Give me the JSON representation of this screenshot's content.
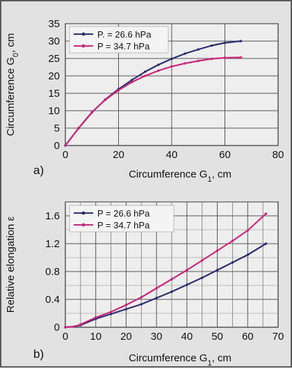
{
  "chart_data": [
    {
      "type": "line",
      "panel_label": "a)",
      "xlabel_main": "Circumference G",
      "xlabel_sub": "1",
      "xlabel_suffix": ", cm",
      "ylabel_main": "Circumference G",
      "ylabel_sub": "0",
      "ylabel_suffix": ", cm",
      "xlim": [
        0,
        80
      ],
      "ylim": [
        0,
        35
      ],
      "xticks": [
        "0",
        "20",
        "40",
        "60",
        "80"
      ],
      "yticks": [
        "0",
        "5",
        "10",
        "15",
        "20",
        "25",
        "30",
        "35"
      ],
      "grid": true,
      "legend_position": "top-left",
      "series": [
        {
          "name": "P. = 26.6  hPa",
          "color": "#2e2e6e",
          "marker": "dot",
          "x": [
            0,
            5,
            10,
            15,
            20,
            25,
            30,
            35,
            40,
            45,
            50,
            55,
            60,
            66
          ],
          "y": [
            0,
            5,
            9.5,
            13.2,
            16.2,
            18.8,
            21.2,
            23.2,
            24.9,
            26.4,
            27.6,
            28.7,
            29.5,
            30
          ]
        },
        {
          "name": "P = 34.7  hPa",
          "color": "#c8287a",
          "marker": "dot",
          "x": [
            0,
            5,
            10,
            15,
            20,
            25,
            30,
            35,
            40,
            45,
            50,
            55,
            60,
            66
          ],
          "y": [
            0,
            5,
            9.6,
            13.1,
            15.9,
            18.2,
            20,
            21.5,
            22.7,
            23.6,
            24.3,
            24.9,
            25.2,
            25.3
          ]
        }
      ]
    },
    {
      "type": "line",
      "panel_label": "b)",
      "xlabel_main": "Circumference G",
      "xlabel_sub": "1",
      "xlabel_suffix": ", cm",
      "ylabel_main": "Relative elongation ε",
      "xlim": [
        0,
        70
      ],
      "ylim": [
        0,
        1.8
      ],
      "xticks": [
        "0",
        "10",
        "20",
        "30",
        "40",
        "50",
        "60",
        "70"
      ],
      "yticks": [
        "0",
        "0.4",
        "0.8",
        "1.2",
        "1.6"
      ],
      "grid": true,
      "legend_position": "top-left",
      "series": [
        {
          "name": "P = 26.6  hPa",
          "color": "#2e2e6e",
          "marker": "dot",
          "x": [
            0,
            3,
            5,
            10,
            15,
            20,
            25,
            30,
            35,
            40,
            45,
            50,
            55,
            60,
            66
          ],
          "y": [
            0,
            0.01,
            0.03,
            0.12,
            0.19,
            0.26,
            0.33,
            0.42,
            0.51,
            0.61,
            0.71,
            0.82,
            0.93,
            1.04,
            1.2
          ]
        },
        {
          "name": "P = 34.7  hPa",
          "color": "#c8287a",
          "marker": "dot",
          "x": [
            0,
            3,
            5,
            10,
            15,
            20,
            25,
            30,
            35,
            40,
            45,
            50,
            55,
            60,
            66
          ],
          "y": [
            0,
            0.01,
            0.04,
            0.14,
            0.22,
            0.32,
            0.43,
            0.56,
            0.69,
            0.82,
            0.96,
            1.1,
            1.24,
            1.39,
            1.63
          ]
        }
      ]
    }
  ]
}
